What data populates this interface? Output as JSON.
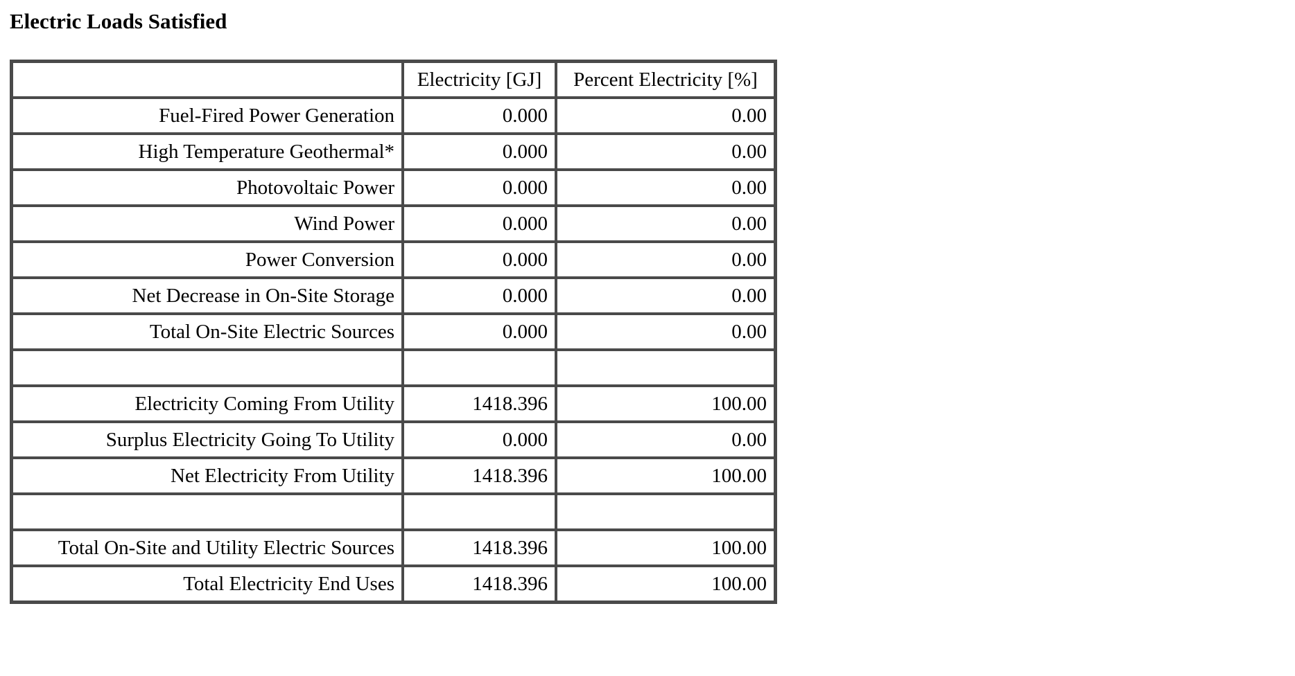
{
  "report": {
    "title": "Electric Loads Satisfied",
    "columns": [
      "",
      "Electricity [GJ]",
      "Percent Electricity [%]"
    ],
    "rows": [
      {
        "label": "Fuel-Fired Power Generation",
        "electricity_gj": "0.000",
        "percent": "0.00"
      },
      {
        "label": "High Temperature Geothermal*",
        "electricity_gj": "0.000",
        "percent": "0.00"
      },
      {
        "label": "Photovoltaic Power",
        "electricity_gj": "0.000",
        "percent": "0.00"
      },
      {
        "label": "Wind Power",
        "electricity_gj": "0.000",
        "percent": "0.00"
      },
      {
        "label": "Power Conversion",
        "electricity_gj": "0.000",
        "percent": "0.00"
      },
      {
        "label": "Net Decrease in On-Site Storage",
        "electricity_gj": "0.000",
        "percent": "0.00"
      },
      {
        "label": "Total On-Site Electric Sources",
        "electricity_gj": "0.000",
        "percent": "0.00"
      },
      {
        "label": "",
        "electricity_gj": "",
        "percent": ""
      },
      {
        "label": "Electricity Coming From Utility",
        "electricity_gj": "1418.396",
        "percent": "100.00"
      },
      {
        "label": "Surplus Electricity Going To Utility",
        "electricity_gj": "0.000",
        "percent": "0.00"
      },
      {
        "label": "Net Electricity From Utility",
        "electricity_gj": "1418.396",
        "percent": "100.00"
      },
      {
        "label": "",
        "electricity_gj": "",
        "percent": ""
      },
      {
        "label": "Total On-Site and Utility Electric Sources",
        "electricity_gj": "1418.396",
        "percent": "100.00"
      },
      {
        "label": "Total Electricity End Uses",
        "electricity_gj": "1418.396",
        "percent": "100.00"
      }
    ]
  }
}
